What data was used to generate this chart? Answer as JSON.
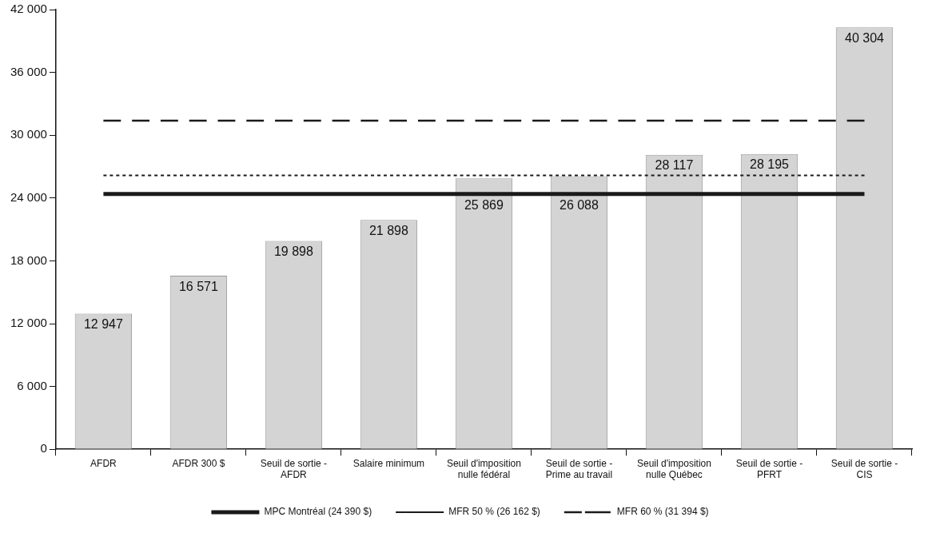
{
  "chart_data": {
    "type": "bar",
    "categories": [
      "AFDR",
      "AFDR 300 $",
      "Seuil de sortie - AFDR",
      "Salaire minimum",
      "Seuil d'imposition nulle fédéral",
      "Seuil de sortie - Prime au travail",
      "Seuil d'imposition nulle Québec",
      "Seuil de sortie - PFRT",
      "Seuil de sortie - CIS"
    ],
    "series": [
      {
        "color": "#d4d4d4",
        "values": [
          12947,
          16571,
          19898,
          21898,
          25869,
          26088,
          28117,
          28195,
          40304
        ],
        "value_labels": [
          "12 947",
          "16 571",
          "19 898",
          "21 898",
          "25 869",
          "26 088",
          "28 117",
          "28 195",
          "40 304"
        ]
      },
      {
        "type": "line",
        "name": "MPC Montréal (24 390 $)",
        "color": "#1a1a1a",
        "line_style": "solid",
        "values": [
          24390,
          24390,
          24390,
          24390,
          24390,
          24390,
          24390,
          24390,
          24390
        ]
      },
      {
        "type": "line",
        "name": "MFR 50 % (26 162 $)",
        "color": "#1a1a1a",
        "line_style": "dotted",
        "values": [
          26162,
          26162,
          26162,
          26162,
          26162,
          26162,
          26162,
          26162,
          26162
        ]
      },
      {
        "type": "line",
        "name": "MFR 60 % (31 394 $)",
        "color": "#1a1a1a",
        "line_style": "dashed",
        "values": [
          31394,
          31394,
          31394,
          31394,
          31394,
          31394,
          31394,
          31394,
          31394
        ]
      }
    ],
    "ylim": [
      0,
      42000
    ],
    "yticks": [
      {
        "value": 0,
        "label": "0"
      },
      {
        "value": 6000,
        "label": "6 000"
      },
      {
        "value": 12000,
        "label": "12 000"
      },
      {
        "value": 18000,
        "label": "18 000"
      },
      {
        "value": 24000,
        "label": "24 000"
      },
      {
        "value": 30000,
        "label": "30 000"
      },
      {
        "value": 36000,
        "label": "36 000"
      },
      {
        "value": 42000,
        "label": "42 000"
      }
    ],
    "grid": false,
    "legend": "bottom",
    "marker": "none"
  }
}
